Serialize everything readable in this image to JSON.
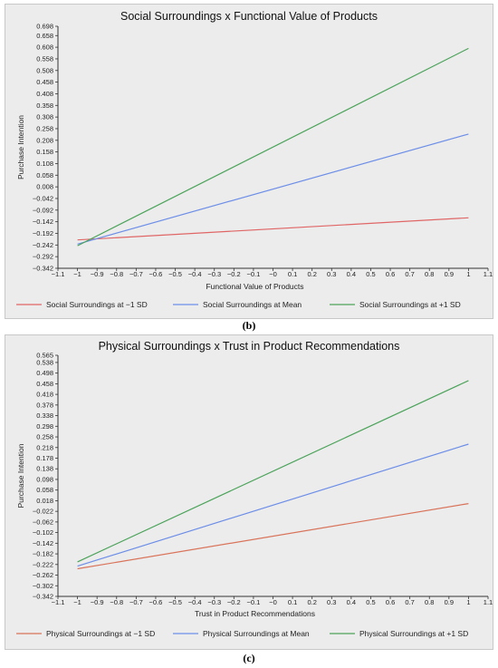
{
  "captions": [
    "(b)",
    "(c)"
  ],
  "chart_data": [
    {
      "type": "line",
      "title": "Social Surroundings x Functional Value of Products",
      "xlabel": "Functional Value of Products",
      "ylabel": "Purchase Intention",
      "xlim": [
        -1.1,
        1.1
      ],
      "ylim": [
        -0.342,
        0.698
      ],
      "x_ticks": [
        "−1.1",
        "−1",
        "−0.9",
        "−0.8",
        "−0.7",
        "−0.6",
        "−0.5",
        "−0.4",
        "−0.3",
        "−0.2",
        "−0.1",
        "−0",
        "0.1",
        "0.2",
        "0.3",
        "0.4",
        "0.5",
        "0.6",
        "0.7",
        "0.8",
        "0.9",
        "1",
        "1.1"
      ],
      "y_ticks": [
        "0.698",
        "0.658",
        "0.608",
        "0.558",
        "0.508",
        "0.458",
        "0.408",
        "0.358",
        "0.308",
        "0.258",
        "0.208",
        "0.158",
        "0.108",
        "0.058",
        "0.008",
        "−0.042",
        "−0.092",
        "−0.142",
        "−0.192",
        "−0.242",
        "−0.292",
        "−0.342"
      ],
      "y_tick_values": [
        0.698,
        0.658,
        0.608,
        0.558,
        0.508,
        0.458,
        0.408,
        0.358,
        0.308,
        0.258,
        0.208,
        0.158,
        0.108,
        0.058,
        0.008,
        -0.042,
        -0.092,
        -0.142,
        -0.192,
        -0.242,
        -0.292,
        -0.342
      ],
      "grid": false,
      "legend_position": "bottom",
      "series": [
        {
          "name": "Social Surroundings at −1 SD",
          "color": "#e06666",
          "x": [
            -1,
            1
          ],
          "y": [
            -0.22,
            -0.125
          ]
        },
        {
          "name": "Social Surroundings at Mean",
          "color": "#6d8ee8",
          "x": [
            -1,
            1
          ],
          "y": [
            -0.238,
            0.235
          ]
        },
        {
          "name": "Social Surroundings at +1 SD",
          "color": "#4ba35a",
          "x": [
            -1,
            1
          ],
          "y": [
            -0.245,
            0.603
          ]
        }
      ]
    },
    {
      "type": "line",
      "title": "Physical Surroundings x Trust in Product Recommendations",
      "xlabel": "Trust in Product Recommendations",
      "ylabel": "Purchase Intention",
      "xlim": [
        -1.1,
        1.1
      ],
      "ylim": [
        -0.342,
        0.565
      ],
      "x_ticks": [
        "−1.1",
        "−1",
        "−0.9",
        "−0.8",
        "−0.7",
        "−0.6",
        "−0.5",
        "−0.4",
        "−0.3",
        "−0.2",
        "−0.1",
        "−0",
        "0.1",
        "0.2",
        "0.3",
        "0.4",
        "0.5",
        "0.6",
        "0.7",
        "0.8",
        "0.9",
        "1",
        "1.1"
      ],
      "y_ticks": [
        "0.565",
        "0.538",
        "0.498",
        "0.458",
        "0.418",
        "0.378",
        "0.338",
        "0.298",
        "0.258",
        "0.218",
        "0.178",
        "0.138",
        "0.098",
        "0.058",
        "0.018",
        "−0.022",
        "−0.062",
        "−0.102",
        "−0.142",
        "−0.182",
        "−0.222",
        "−0.262",
        "−0.302",
        "−0.342"
      ],
      "y_tick_values": [
        0.565,
        0.538,
        0.498,
        0.458,
        0.418,
        0.378,
        0.338,
        0.298,
        0.258,
        0.218,
        0.178,
        0.138,
        0.098,
        0.058,
        0.018,
        -0.022,
        -0.062,
        -0.102,
        -0.142,
        -0.182,
        -0.222,
        -0.262,
        -0.302,
        -0.342
      ],
      "grid": false,
      "legend_position": "bottom",
      "series": [
        {
          "name": "Physical Surroundings at −1 SD",
          "color": "#d9735a",
          "x": [
            -1,
            1
          ],
          "y": [
            -0.238,
            0.007
          ]
        },
        {
          "name": "Physical Surroundings at Mean",
          "color": "#6d8ee8",
          "x": [
            -1,
            1
          ],
          "y": [
            -0.228,
            0.231
          ]
        },
        {
          "name": "Physical Surroundings at +1 SD",
          "color": "#4ba35a",
          "x": [
            -1,
            1
          ],
          "y": [
            -0.212,
            0.47
          ]
        }
      ]
    }
  ]
}
